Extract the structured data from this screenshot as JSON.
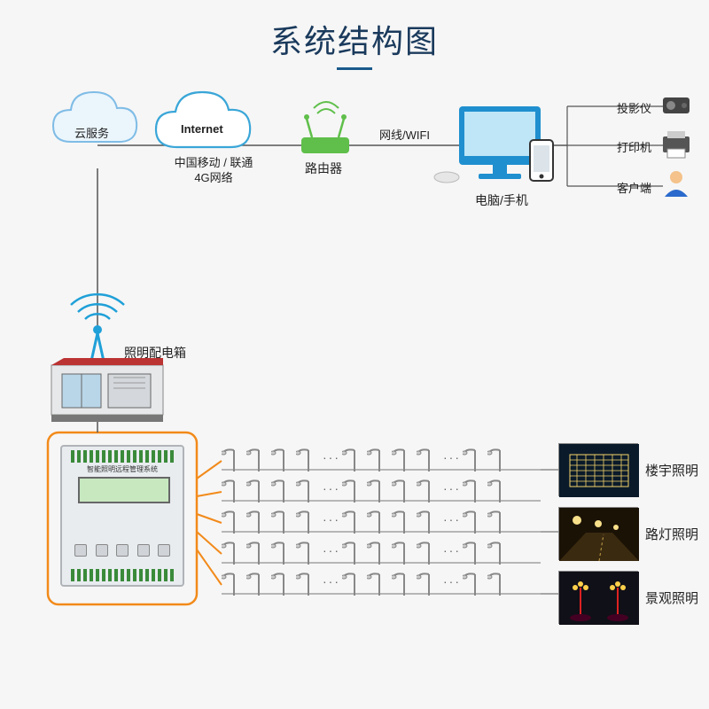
{
  "title": "系统结构图",
  "top": {
    "cloud": "云服务",
    "internet": "Internet",
    "internet_sub": "中国移动 / 联通\n4G网络",
    "router": "路由器",
    "link_wifi": "网线/WIFI",
    "pc_phone": "电脑/手机",
    "peripherals": {
      "projector": "投影仪",
      "printer": "打印机",
      "client": "客户端"
    }
  },
  "mid": {
    "distbox": "照明配电箱"
  },
  "controller_title": "智能照明远程管理系统",
  "lighting": {
    "building": "楼宇照明",
    "street": "路灯照明",
    "landscape": "景观照明"
  },
  "colors": {
    "line": "#555555",
    "cloud_outline": "#7fbce6",
    "cloud_fill": "#eaf5fc",
    "internet_outline": "#3aa6d8",
    "router_body": "#5fbf4a",
    "monitor_frame": "#1f8fcf",
    "monitor_screen": "#bfe6f7",
    "orange": "#f28a1a",
    "antenna": "#1fa0d8"
  }
}
